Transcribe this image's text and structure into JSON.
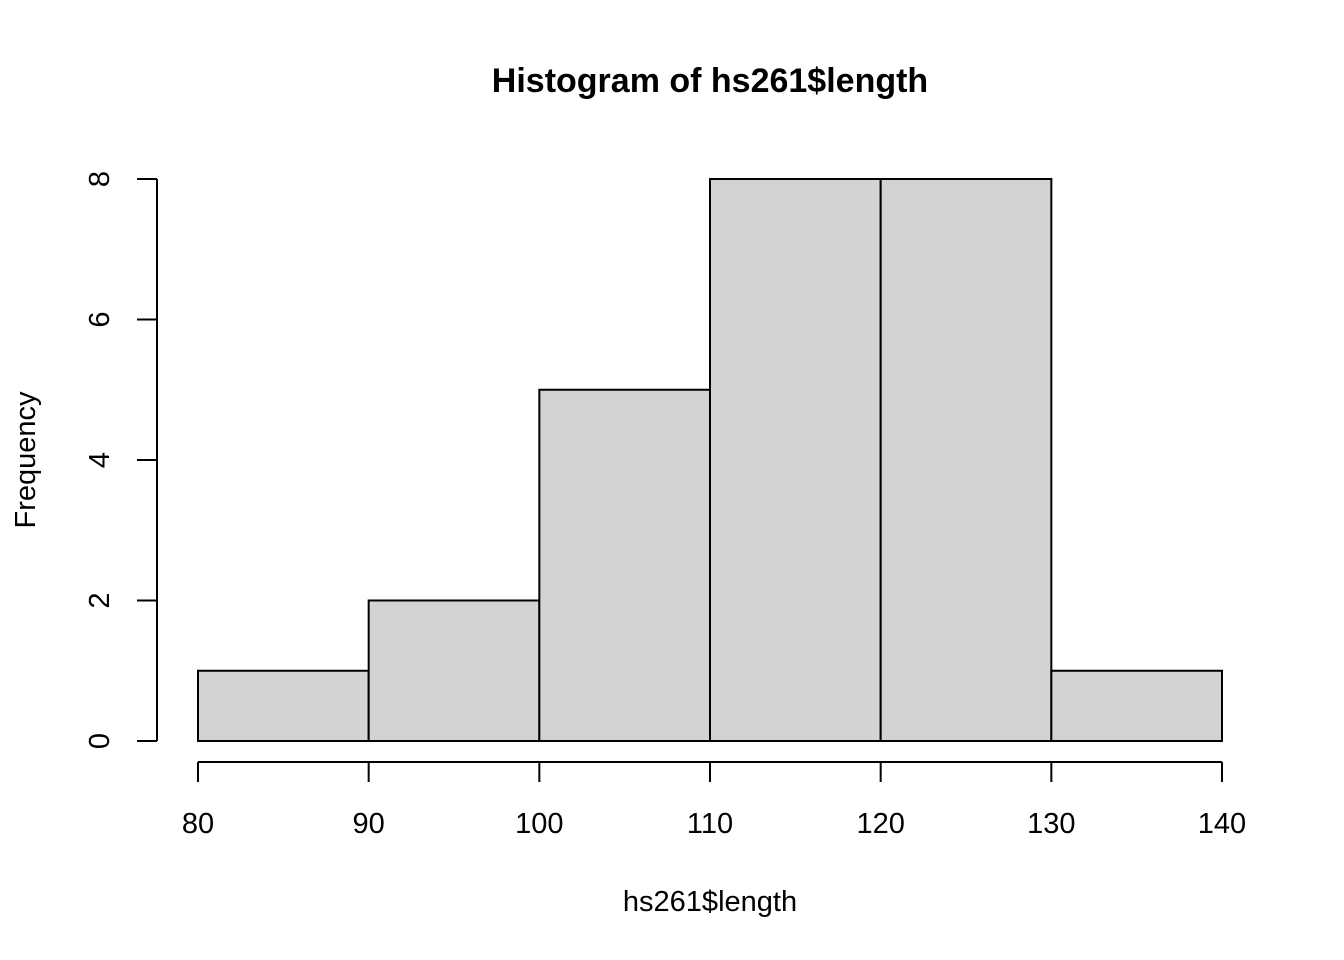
{
  "chart_data": {
    "type": "bar",
    "subtype": "histogram",
    "title": "Histogram of hs261$length",
    "xlabel": "hs261$length",
    "ylabel": "Frequency",
    "bins": [
      {
        "from": 80,
        "to": 90,
        "count": 1
      },
      {
        "from": 90,
        "to": 100,
        "count": 2
      },
      {
        "from": 100,
        "to": 110,
        "count": 5
      },
      {
        "from": 110,
        "to": 120,
        "count": 8
      },
      {
        "from": 120,
        "to": 130,
        "count": 8
      },
      {
        "from": 130,
        "to": 140,
        "count": 1
      }
    ],
    "xlim": [
      80,
      140
    ],
    "ylim": [
      0,
      8
    ],
    "x_ticks": [
      "80",
      "90",
      "100",
      "110",
      "120",
      "130",
      "140"
    ],
    "y_ticks": [
      "0",
      "2",
      "4",
      "6",
      "8"
    ],
    "grid": false,
    "legend": "none",
    "colors": {
      "bar_fill": "#d3d3d3",
      "bar_border": "#000000",
      "axis": "#000000"
    }
  }
}
